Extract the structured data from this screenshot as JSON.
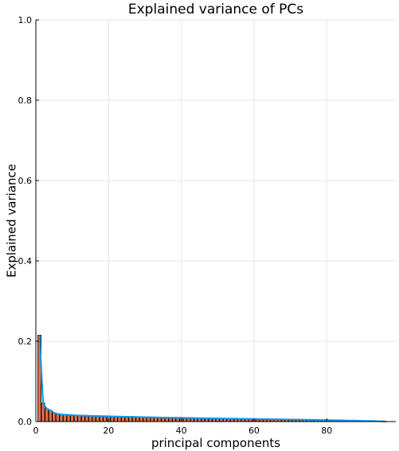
{
  "chart_data": {
    "type": "bar",
    "title": "Explained variance of PCs",
    "xlabel": "principal components",
    "ylabel": "Explained variance",
    "xlim": [
      0,
      99
    ],
    "ylim": [
      0,
      1
    ],
    "x_ticks": [
      0,
      20,
      40,
      60,
      80
    ],
    "y_ticks": [
      0.0,
      0.2,
      0.4,
      0.6,
      0.8,
      1.0
    ],
    "x_tick_labels": [
      "0",
      "20",
      "40",
      "60",
      "80"
    ],
    "y_tick_labels": [
      "0.0",
      "0.2",
      "0.4",
      "0.6",
      "0.8",
      "1.0"
    ],
    "grid": true,
    "legend": "none",
    "bar_color": "#e26f46",
    "line_color": "#009af9",
    "series": [
      {
        "type": "bar",
        "x_start": 1,
        "values": [
          0.215,
          0.046,
          0.032,
          0.028,
          0.022,
          0.019,
          0.018,
          0.017,
          0.0165,
          0.016,
          0.0155,
          0.015,
          0.0148,
          0.0145,
          0.0142,
          0.014,
          0.0138,
          0.0135,
          0.0133,
          0.013,
          0.0128,
          0.0126,
          0.0124,
          0.0122,
          0.012,
          0.0118,
          0.0116,
          0.0114,
          0.0112,
          0.011,
          0.0108,
          0.0106,
          0.0104,
          0.0102,
          0.01,
          0.0099,
          0.0097,
          0.0096,
          0.0094,
          0.0093,
          0.0091,
          0.009,
          0.0088,
          0.0087,
          0.0085,
          0.0084,
          0.0082,
          0.0081,
          0.008,
          0.0078,
          0.0077,
          0.0076,
          0.0074,
          0.0073,
          0.0072,
          0.007,
          0.0069,
          0.0068,
          0.0066,
          0.0065,
          0.0064,
          0.0062,
          0.0061,
          0.006,
          0.0058,
          0.0057,
          0.0056,
          0.0054,
          0.0053,
          0.0052,
          0.005,
          0.0049,
          0.0047,
          0.0046,
          0.0044,
          0.0043,
          0.0041,
          0.004,
          0.0038,
          0.0037,
          0.0035,
          0.0033,
          0.0032,
          0.003,
          0.0028,
          0.0026,
          0.0024,
          0.0022,
          0.002,
          0.0018,
          0.0016,
          0.0014,
          0.0012,
          0.001,
          0.0008,
          0.0005
        ]
      },
      {
        "type": "line",
        "x_start": 1,
        "values": [
          0.215,
          0.046,
          0.032,
          0.028,
          0.022,
          0.019,
          0.018,
          0.017,
          0.0165,
          0.016,
          0.0155,
          0.015,
          0.0148,
          0.0145,
          0.0142,
          0.014,
          0.0138,
          0.0135,
          0.0133,
          0.013,
          0.0128,
          0.0126,
          0.0124,
          0.0122,
          0.012,
          0.0118,
          0.0116,
          0.0114,
          0.0112,
          0.011,
          0.0108,
          0.0106,
          0.0104,
          0.0102,
          0.01,
          0.0099,
          0.0097,
          0.0096,
          0.0094,
          0.0093,
          0.0091,
          0.009,
          0.0088,
          0.0087,
          0.0085,
          0.0084,
          0.0082,
          0.0081,
          0.008,
          0.0078,
          0.0077,
          0.0076,
          0.0074,
          0.0073,
          0.0072,
          0.007,
          0.0069,
          0.0068,
          0.0066,
          0.0065,
          0.0064,
          0.0062,
          0.0061,
          0.006,
          0.0058,
          0.0057,
          0.0056,
          0.0054,
          0.0053,
          0.0052,
          0.005,
          0.0049,
          0.0047,
          0.0046,
          0.0044,
          0.0043,
          0.0041,
          0.004,
          0.0038,
          0.0037,
          0.0035,
          0.0033,
          0.0032,
          0.003,
          0.0028,
          0.0026,
          0.0024,
          0.0022,
          0.002,
          0.0018,
          0.0016,
          0.0014,
          0.0012,
          0.001,
          0.0008,
          0.0005
        ]
      }
    ]
  }
}
